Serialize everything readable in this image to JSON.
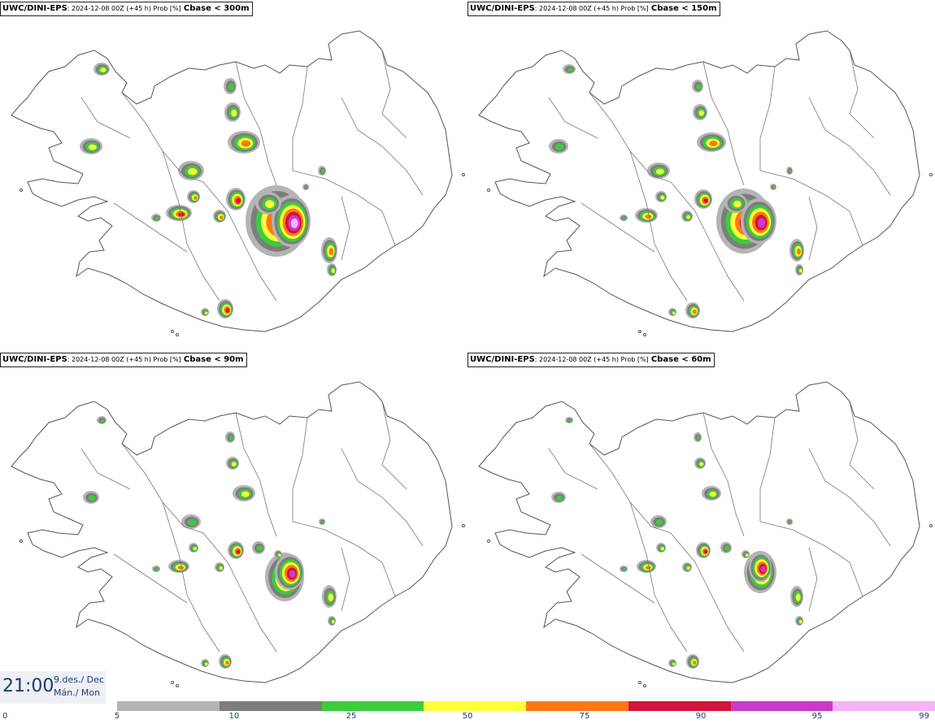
{
  "panels": [
    {
      "model": "UWC/DINI-EPS",
      "info": ": 2024-12-08 00Z (+45 h) Prob [%]",
      "threshold": "Cbase < 300m"
    },
    {
      "model": "UWC/DINI-EPS",
      "info": ": 2024-12-08 00Z (+45 h) Prob [%]",
      "threshold": "Cbase < 150m"
    },
    {
      "model": "UWC/DINI-EPS",
      "info": ": 2024-12-08 00Z (+45 h) Prob [%]",
      "threshold": "Cbase < 90m"
    },
    {
      "model": "UWC/DINI-EPS",
      "info": ": 2024-12-08 00Z (+45 h) Prob [%]",
      "threshold": "Cbase < 60m"
    }
  ],
  "valid_time": {
    "clock": "21:00",
    "date": "9.des./ Dec",
    "weekday": "Mán./ Mon"
  },
  "legend": {
    "ticks": [
      "0",
      "5",
      "10",
      "25",
      "50",
      "75",
      "90",
      "95",
      "99"
    ],
    "colors": [
      "#b4b4b4",
      "#7d7d7d",
      "#3ccc3c",
      "#ffff3c",
      "#ff7814",
      "#d2143c",
      "#c83cc8",
      "#f5b4f5"
    ]
  },
  "map_colors": {
    "coast": "#555555",
    "border": "#777777",
    "p5": "#b4b4b4",
    "p10": "#7d7d7d",
    "p25": "#3ccc3c",
    "p50": "#ffff3c",
    "p75": "#ff7814",
    "p90": "#d2143c",
    "p95": "#c83cc8",
    "p99": "#f5b4f5"
  }
}
